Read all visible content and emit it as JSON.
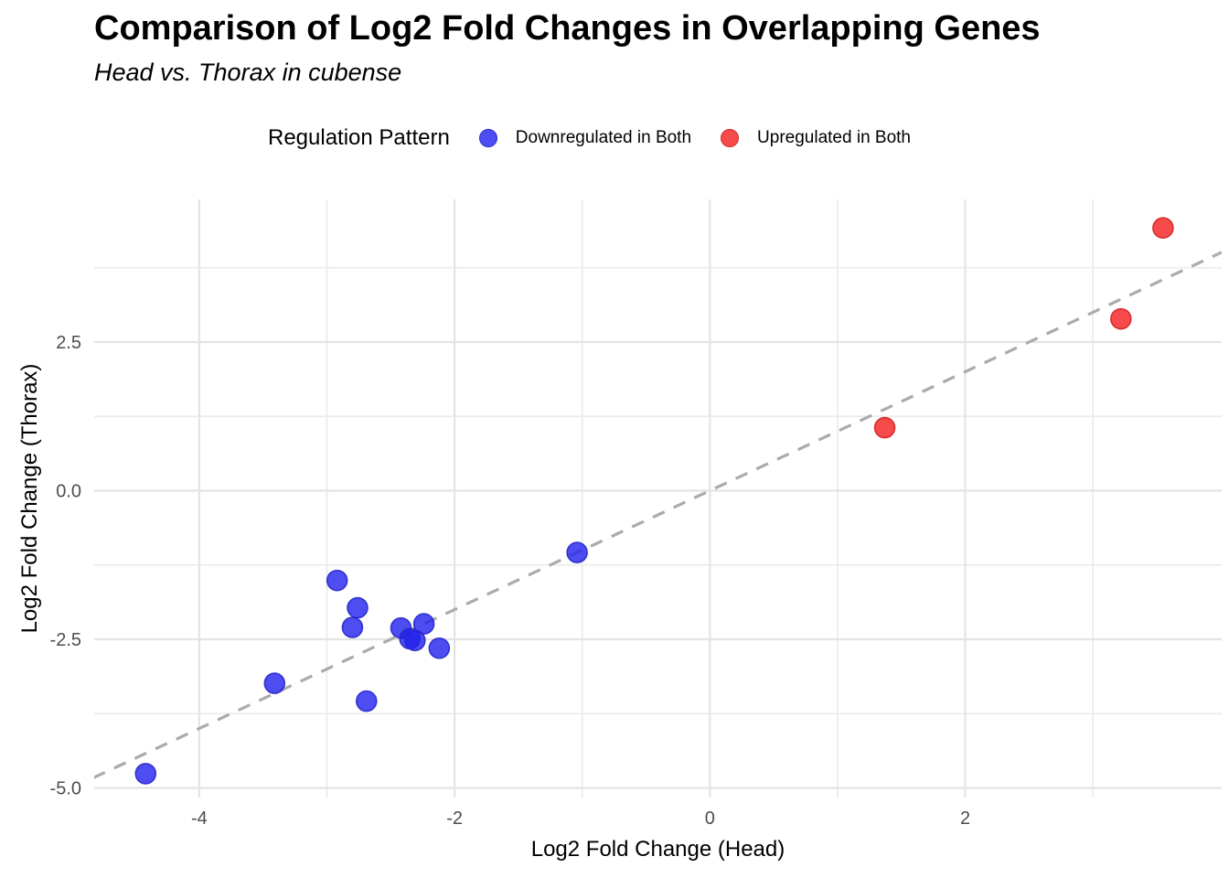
{
  "header": {
    "title": "Comparison of Log2 Fold Changes in Overlapping Genes",
    "subtitle": "Head vs. Thorax in cubense"
  },
  "legend": {
    "title": "Regulation Pattern",
    "items": [
      {
        "label": "Downregulated in Both",
        "swatch_color": "#4D4DF1",
        "swatch_stroke": "#2E2ECB"
      },
      {
        "label": "Upregulated in Both",
        "swatch_color": "#F74B4B",
        "swatch_stroke": "#D42A2A"
      }
    ]
  },
  "chart_data": {
    "type": "scatter",
    "title": "Comparison of Log2 Fold Changes in Overlapping Genes",
    "subtitle": "Head vs. Thorax in cubense",
    "xlabel": "Log2 Fold Change (Head)",
    "ylabel": "Log2 Fold Change (Thorax)",
    "xlim": [
      -4.83,
      4.01
    ],
    "ylim": [
      -5.16,
      4.9
    ],
    "x_ticks": [
      -4,
      -2,
      0,
      2
    ],
    "x_tick_labels": [
      "-4",
      "-2",
      "0",
      "2"
    ],
    "x_minor_ticks": [
      -3,
      -1,
      1,
      3
    ],
    "y_ticks": [
      2.5,
      0,
      -2.5,
      -5
    ],
    "y_tick_labels": [
      "2.5",
      "0.0",
      "-2.5",
      "-5.0"
    ],
    "y_minor_ticks": [
      3.75,
      1.25,
      -1.25,
      -3.75
    ],
    "grid": true,
    "legend_position": "top",
    "reference_line": {
      "type": "identity y = x",
      "style": "dashed",
      "color": "#ABABAB"
    },
    "series": [
      {
        "name": "Downregulated in Both",
        "fill": "#2020EE",
        "fill_opacity": 0.8,
        "stroke": "#2828CC",
        "points": [
          [
            -4.42,
            -4.76
          ],
          [
            -3.41,
            -3.24
          ],
          [
            -2.92,
            -1.51
          ],
          [
            -2.8,
            -2.3
          ],
          [
            -2.76,
            -1.97
          ],
          [
            -2.69,
            -3.54
          ],
          [
            -2.42,
            -2.31
          ],
          [
            -2.35,
            -2.49
          ],
          [
            -2.31,
            -2.52
          ],
          [
            -2.24,
            -2.24
          ],
          [
            -2.12,
            -2.65
          ],
          [
            -1.04,
            -1.04
          ]
        ]
      },
      {
        "name": "Upregulated in Both",
        "fill": "#F51E1E",
        "fill_opacity": 0.8,
        "stroke": "#D42222",
        "points": [
          [
            1.37,
            1.06
          ],
          [
            3.22,
            2.89
          ],
          [
            3.55,
            4.42
          ]
        ]
      }
    ]
  },
  "style": {
    "background": "#FFFFFF",
    "grid_major_color": "#E4E4E4",
    "grid_minor_color": "#ECECEC",
    "tick_label_color": "#4D4D4D",
    "axis_title_color": "#000000",
    "title_color": "#000000",
    "reference_line_color": "#ABABAB"
  }
}
